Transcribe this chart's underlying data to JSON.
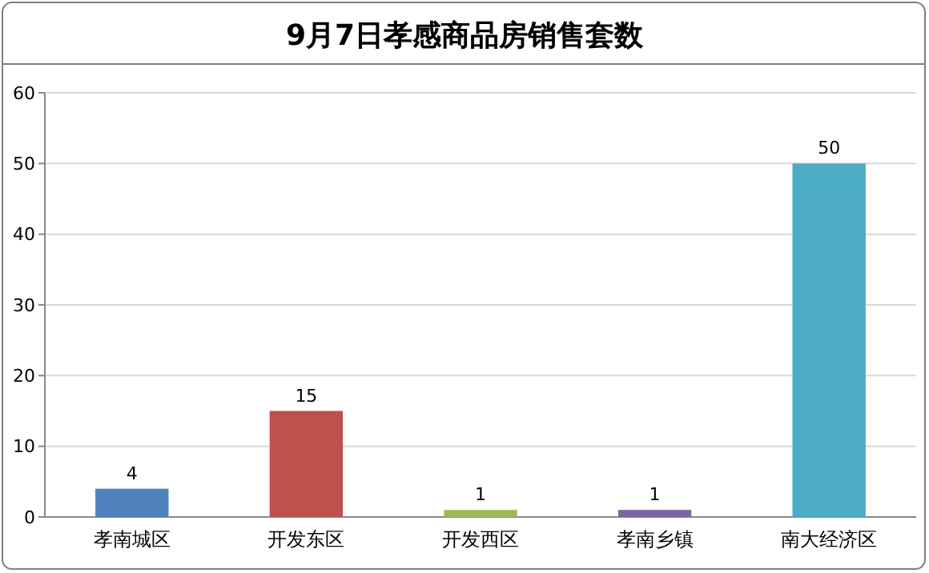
{
  "chart_data": {
    "type": "bar",
    "title": "9月7日孝感商品房销售套数",
    "categories": [
      "孝南城区",
      "开发东区",
      "开发西区",
      "孝南乡镇",
      "南大经济区"
    ],
    "values": [
      4,
      15,
      1,
      1,
      50
    ],
    "colors": [
      "#4f81bd",
      "#c0504d",
      "#9bbb59",
      "#8064a2",
      "#4bacc6"
    ],
    "ylim": [
      0,
      60
    ],
    "yticks": [
      0,
      10,
      20,
      30,
      40,
      50,
      60
    ],
    "grid": "y",
    "data_labels": true
  }
}
